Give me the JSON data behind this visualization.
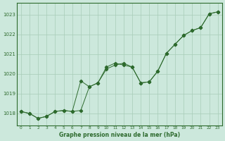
{
  "line1_x": [
    0,
    1,
    2,
    3,
    4,
    5,
    6,
    7,
    8,
    9,
    10,
    11,
    12,
    13,
    14,
    15,
    16,
    17,
    18,
    19,
    20,
    21,
    22,
    23
  ],
  "line1_y": [
    1018.1,
    1018.0,
    1017.75,
    1017.85,
    1018.1,
    1018.15,
    1018.1,
    1018.15,
    1019.35,
    1019.55,
    1020.25,
    1020.45,
    1020.55,
    1020.35,
    1019.55,
    1019.6,
    1020.15,
    1021.05,
    1021.5,
    1021.95,
    1022.2,
    1022.35,
    1023.05,
    1023.15
  ],
  "line2_x": [
    0,
    1,
    2,
    3,
    4,
    5,
    6,
    7,
    8,
    9,
    10,
    11,
    12,
    13,
    14,
    15,
    16,
    17,
    18,
    19,
    20,
    21,
    22,
    23
  ],
  "line2_y": [
    1018.1,
    1018.0,
    1017.75,
    1017.85,
    1018.1,
    1018.15,
    1018.1,
    1019.65,
    1019.35,
    1019.55,
    1020.35,
    1020.55,
    1020.45,
    1020.35,
    1019.55,
    1019.6,
    1020.15,
    1021.05,
    1021.5,
    1021.95,
    1022.2,
    1022.35,
    1023.05,
    1023.15
  ],
  "line_color": "#2d6a2d",
  "bg_color": "#cce8dc",
  "grid_color": "#a8ccb8",
  "xlabel": "Graphe pression niveau de la mer (hPa)",
  "ylim": [
    1017.4,
    1023.6
  ],
  "xlim": [
    -0.5,
    23.5
  ],
  "yticks": [
    1018,
    1019,
    1020,
    1021,
    1022,
    1023
  ],
  "xticks": [
    0,
    1,
    2,
    3,
    4,
    5,
    6,
    7,
    8,
    9,
    10,
    11,
    12,
    13,
    14,
    15,
    16,
    17,
    18,
    19,
    20,
    21,
    22,
    23
  ]
}
